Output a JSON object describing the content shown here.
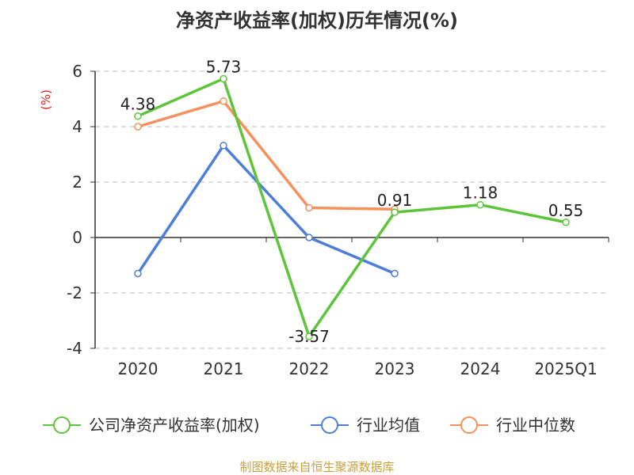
{
  "chart_data": {
    "type": "line",
    "title": "净资产收益率(加权)历年情况(%)",
    "ylabel": "(%)",
    "xlabel": "",
    "categories": [
      "2020",
      "2021",
      "2022",
      "2023",
      "2024",
      "2025Q1"
    ],
    "ylim": [
      -4,
      6
    ],
    "yticks": [
      -4,
      -2,
      0,
      2,
      4,
      6
    ],
    "grid": true,
    "legend_position": "bottom",
    "series": [
      {
        "name": "公司净资产收益率(加权)",
        "color": "#5ec53a",
        "values": [
          4.38,
          5.73,
          -3.57,
          0.91,
          1.18,
          0.55
        ],
        "labels": [
          "4.38",
          "5.73",
          "-3.57",
          "0.91",
          "1.18",
          "0.55"
        ]
      },
      {
        "name": "行业均值",
        "color": "#4e7fd8",
        "values": [
          -1.3,
          3.32,
          0.0,
          -1.3,
          null,
          null
        ],
        "labels": null
      },
      {
        "name": "行业中位数",
        "color": "#f5915e",
        "values": [
          4.0,
          4.92,
          1.07,
          1.02,
          null,
          null
        ],
        "labels": null
      }
    ],
    "source": "制图数据来自恒生聚源数据库"
  }
}
